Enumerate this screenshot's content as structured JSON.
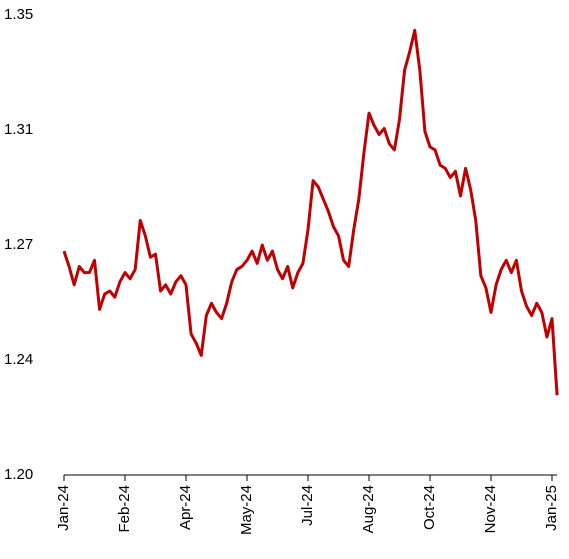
{
  "chart_data": {
    "type": "line",
    "categories": [
      "Jan-24",
      null,
      null,
      null,
      null,
      null,
      null,
      null,
      null,
      null,
      null,
      null,
      "Feb-24",
      null,
      null,
      null,
      null,
      null,
      null,
      null,
      null,
      null,
      null,
      null,
      "Apr-24",
      null,
      null,
      null,
      null,
      null,
      null,
      null,
      null,
      null,
      null,
      null,
      "May-24",
      null,
      null,
      null,
      null,
      null,
      null,
      null,
      null,
      null,
      null,
      null,
      "Jul-24",
      null,
      null,
      null,
      null,
      null,
      null,
      null,
      null,
      null,
      null,
      null,
      "Aug-24",
      null,
      null,
      null,
      null,
      null,
      null,
      null,
      null,
      null,
      null,
      null,
      "Oct-24",
      null,
      null,
      null,
      null,
      null,
      null,
      null,
      null,
      null,
      null,
      null,
      "Nov-24",
      null,
      null,
      null,
      null,
      null,
      null,
      null,
      null,
      null,
      null,
      null,
      "Jan-25",
      null
    ],
    "series": [
      {
        "color": "#c00000",
        "values": [
          1.273,
          1.268,
          1.262,
          1.268,
          1.266,
          1.266,
          1.27,
          1.254,
          1.259,
          1.26,
          1.258,
          1.263,
          1.266,
          1.264,
          1.267,
          1.283,
          1.278,
          1.271,
          1.272,
          1.26,
          1.262,
          1.259,
          1.263,
          1.265,
          1.262,
          1.246,
          1.243,
          1.239,
          1.252,
          1.256,
          1.253,
          1.251,
          1.256,
          1.263,
          1.267,
          1.268,
          1.27,
          1.273,
          1.269,
          1.275,
          1.27,
          1.273,
          1.267,
          1.264,
          1.268,
          1.261,
          1.266,
          1.269,
          1.28,
          1.296,
          1.294,
          1.29,
          1.286,
          1.281,
          1.278,
          1.27,
          1.268,
          1.28,
          1.29,
          1.305,
          1.318,
          1.314,
          1.311,
          1.313,
          1.308,
          1.306,
          1.316,
          1.332,
          1.338,
          1.345,
          1.332,
          1.312,
          1.307,
          1.306,
          1.301,
          1.3,
          1.297,
          1.299,
          1.291,
          1.3,
          1.293,
          1.283,
          1.265,
          1.261,
          1.253,
          1.262,
          1.267,
          1.27,
          1.266,
          1.27,
          1.26,
          1.255,
          1.252,
          1.256,
          1.253,
          1.245,
          1.251,
          1.226
        ]
      }
    ],
    "ylim": [
      1.2,
      1.35
    ],
    "yticks": [
      {
        "value": 1.2,
        "label": "1.20"
      },
      {
        "value": 1.2375,
        "label": "1.24"
      },
      {
        "value": 1.275,
        "label": "1.27"
      },
      {
        "value": 1.3125,
        "label": "1.31"
      },
      {
        "value": 1.35,
        "label": "1.35"
      }
    ],
    "grid": false
  }
}
